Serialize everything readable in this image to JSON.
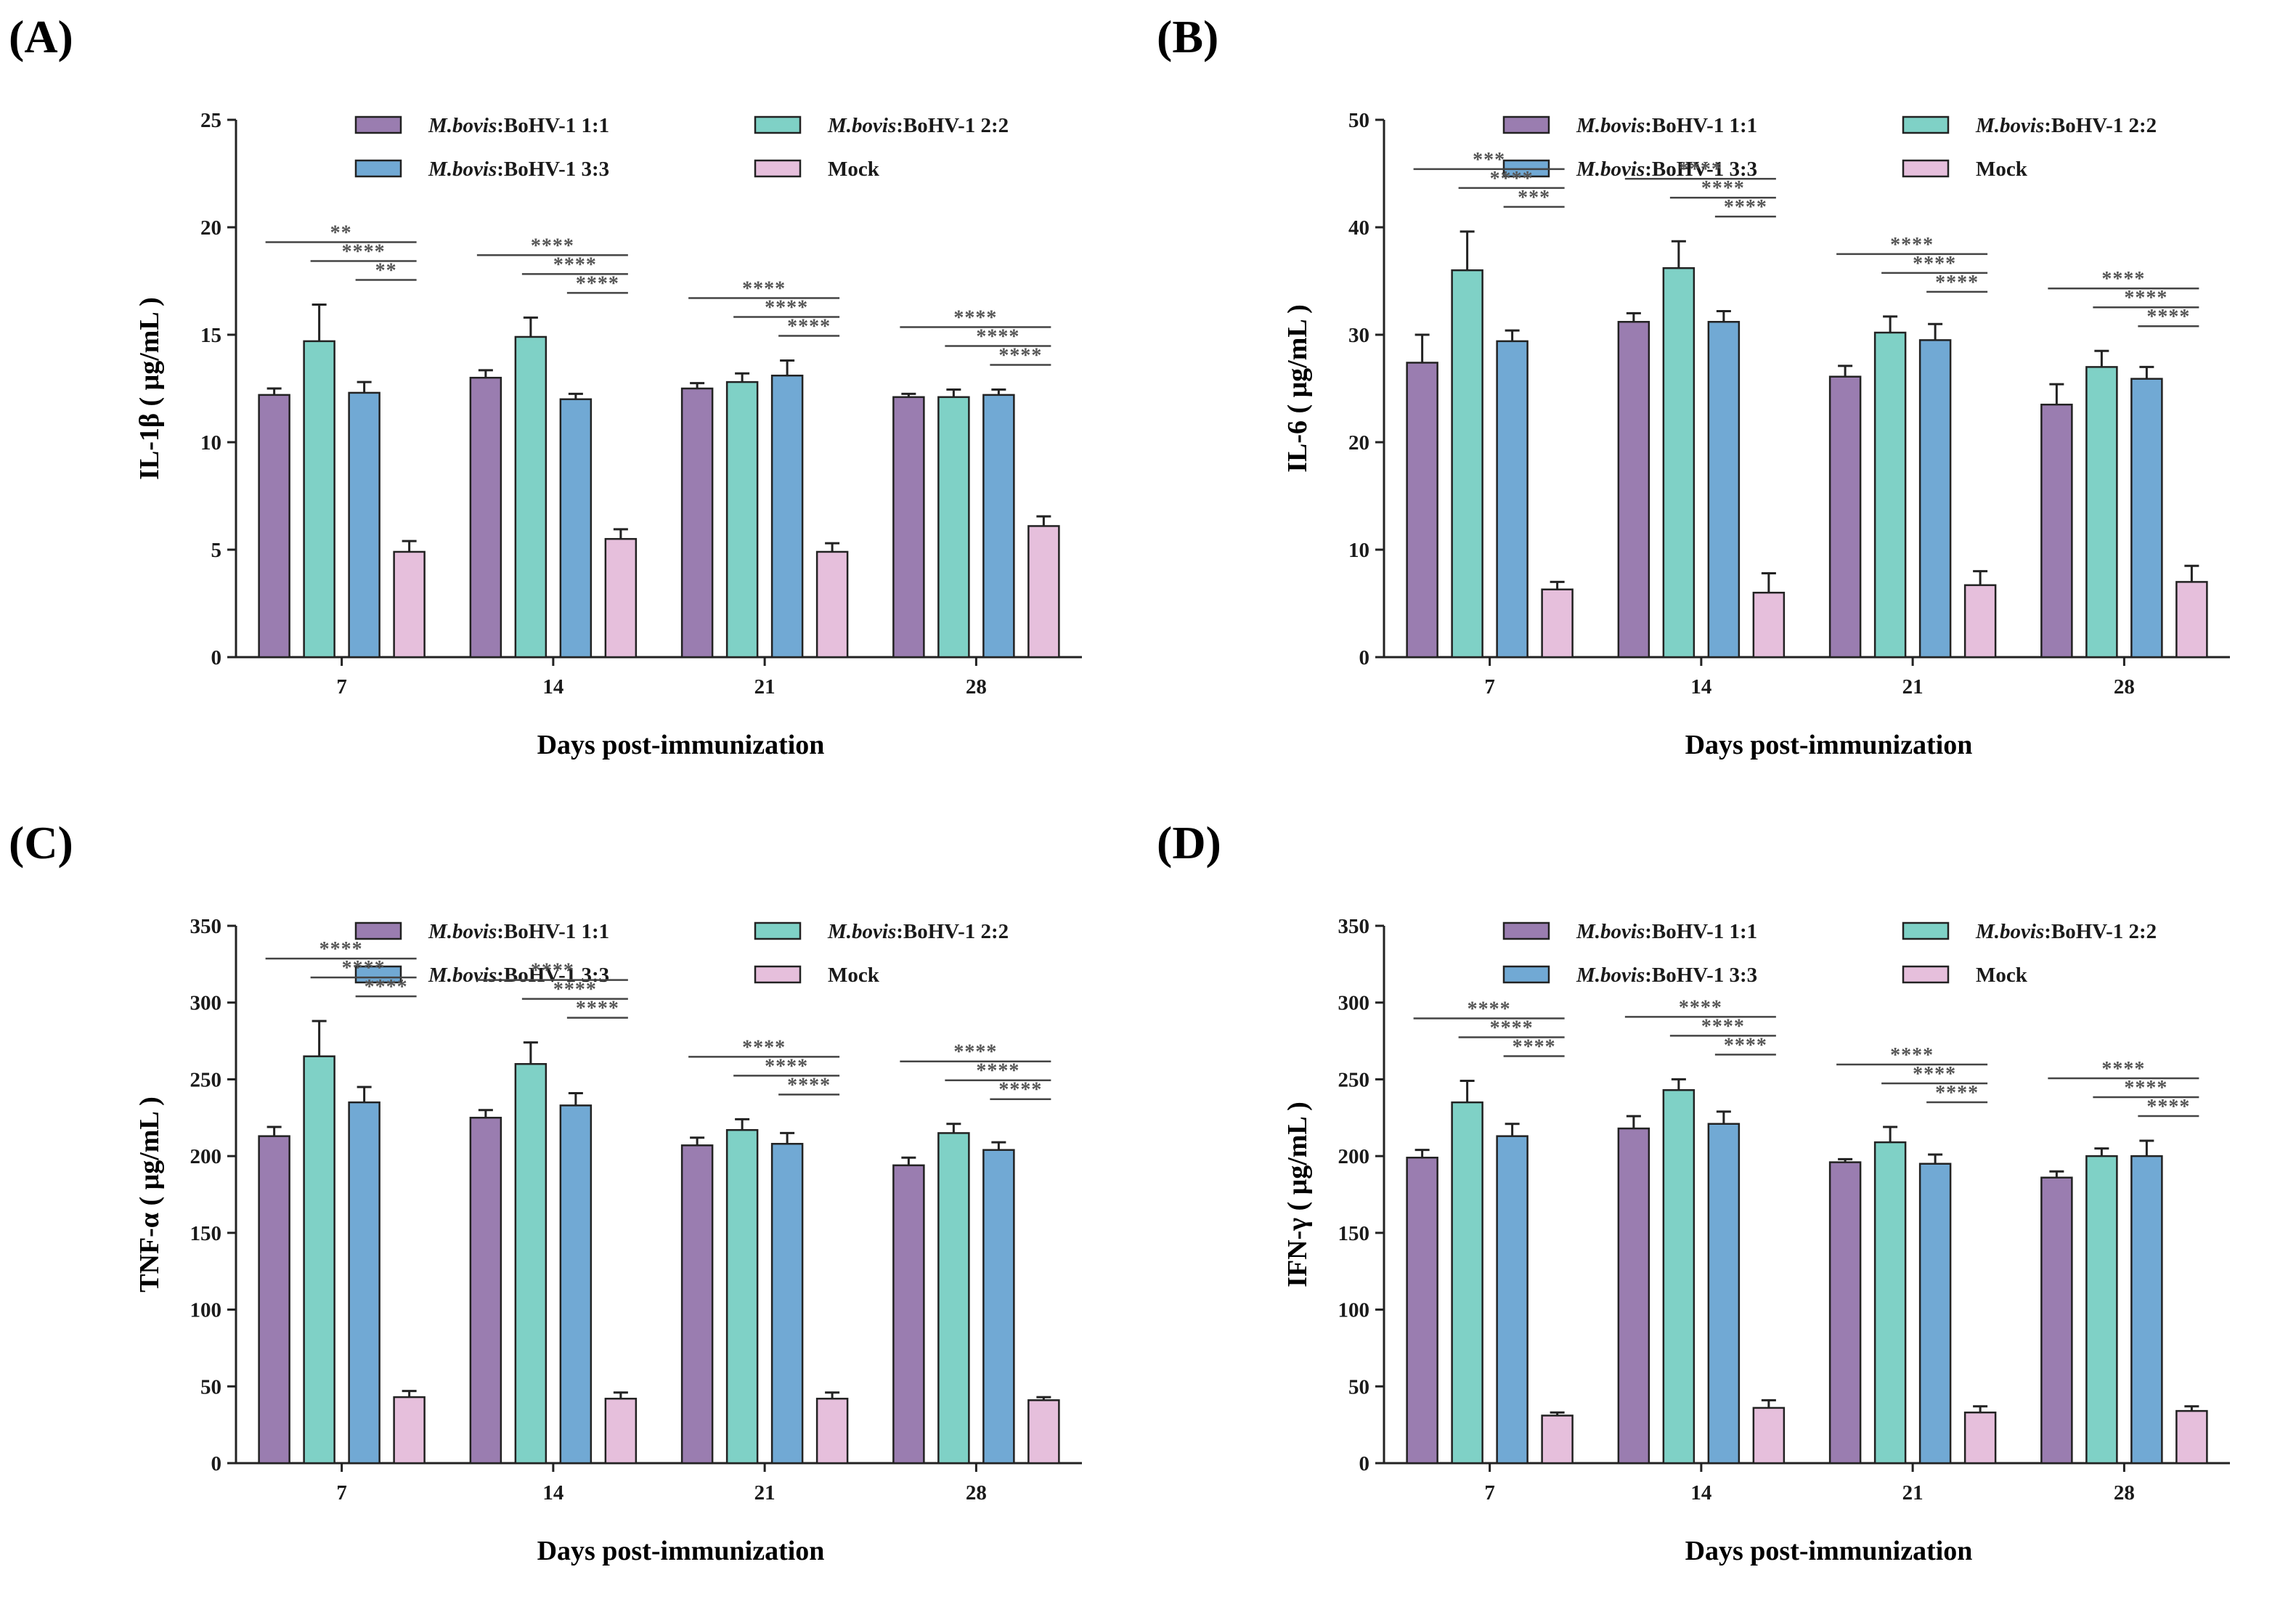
{
  "figure": {
    "legend": [
      {
        "italic": "M.bovis",
        "rest": ":BoHV-1 1:1",
        "color": "#9a7db0"
      },
      {
        "italic": "M.bovis",
        "rest": ":BoHV-1 2:2",
        "color": "#7fd1c6"
      },
      {
        "italic": "M.bovis",
        "rest": ":BoHV-1 3:3",
        "color": "#71a9d4"
      },
      {
        "italic": "",
        "rest": "Mock",
        "color": "#e6bfdc"
      }
    ]
  },
  "chart_data": [
    {
      "panel": "(A)",
      "type": "bar",
      "ylabel": "IL-1β ( μg/mL )",
      "xlabel": "Days post-immunization",
      "categories": [
        "7",
        "14",
        "21",
        "28"
      ],
      "ylim": [
        0,
        25
      ],
      "yticks": [
        "0",
        "5",
        "10",
        "15",
        "20",
        "25"
      ],
      "series": [
        {
          "name": "M.bovis:BoHV-1 1:1",
          "values": [
            12.2,
            13.0,
            12.5,
            12.1
          ],
          "errors": [
            0.3,
            0.35,
            0.25,
            0.15
          ]
        },
        {
          "name": "M.bovis:BoHV-1 2:2",
          "values": [
            14.7,
            14.9,
            12.8,
            12.1
          ],
          "errors": [
            1.7,
            0.9,
            0.4,
            0.35
          ]
        },
        {
          "name": "M.bovis:BoHV-1 3:3",
          "values": [
            12.3,
            12.0,
            13.1,
            12.2
          ],
          "errors": [
            0.5,
            0.25,
            0.7,
            0.25
          ]
        },
        {
          "name": "Mock",
          "values": [
            4.9,
            5.5,
            4.9,
            6.1
          ],
          "errors": [
            0.5,
            0.45,
            0.4,
            0.45
          ]
        }
      ],
      "significance": [
        [
          "**",
          "****",
          "**"
        ],
        [
          "****",
          "****",
          "****"
        ],
        [
          "****",
          "****",
          "****"
        ],
        [
          "****",
          "****",
          "****"
        ]
      ]
    },
    {
      "panel": "(B)",
      "type": "bar",
      "ylabel": "IL-6 ( μg/mL )",
      "xlabel": "Days post-immunization",
      "categories": [
        "7",
        "14",
        "21",
        "28"
      ],
      "ylim": [
        0,
        50
      ],
      "yticks": [
        "0",
        "10",
        "20",
        "30",
        "40",
        "50"
      ],
      "series": [
        {
          "name": "M.bovis:BoHV-1 1:1",
          "values": [
            27.4,
            31.2,
            26.1,
            23.5
          ],
          "errors": [
            2.6,
            0.8,
            1.0,
            1.9
          ]
        },
        {
          "name": "M.bovis:BoHV-1 2:2",
          "values": [
            36.0,
            36.2,
            30.2,
            27.0
          ],
          "errors": [
            3.6,
            2.5,
            1.5,
            1.5
          ]
        },
        {
          "name": "M.bovis:BoHV-1 3:3",
          "values": [
            29.4,
            31.2,
            29.5,
            25.9
          ],
          "errors": [
            1.0,
            1.0,
            1.5,
            1.1
          ]
        },
        {
          "name": "Mock",
          "values": [
            6.3,
            6.0,
            6.7,
            7.0
          ],
          "errors": [
            0.7,
            1.8,
            1.3,
            1.5
          ]
        }
      ],
      "significance": [
        [
          "***",
          "****",
          "***"
        ],
        [
          "****",
          "****",
          "****"
        ],
        [
          "****",
          "****",
          "****"
        ],
        [
          "****",
          "****",
          "****"
        ]
      ]
    },
    {
      "panel": "(C)",
      "type": "bar",
      "ylabel": "TNF-α ( μg/mL )",
      "xlabel": "Days post-immunization",
      "categories": [
        "7",
        "14",
        "21",
        "28"
      ],
      "ylim": [
        0,
        350
      ],
      "yticks": [
        "0",
        "50",
        "100",
        "150",
        "200",
        "250",
        "300",
        "350"
      ],
      "series": [
        {
          "name": "M.bovis:BoHV-1 1:1",
          "values": [
            213,
            225,
            207,
            194
          ],
          "errors": [
            6,
            5,
            5,
            5
          ]
        },
        {
          "name": "M.bovis:BoHV-1 2:2",
          "values": [
            265,
            260,
            217,
            215
          ],
          "errors": [
            23,
            14,
            7,
            6
          ]
        },
        {
          "name": "M.bovis:BoHV-1 3:3",
          "values": [
            235,
            233,
            208,
            204
          ],
          "errors": [
            10,
            8,
            7,
            5
          ]
        },
        {
          "name": "Mock",
          "values": [
            43,
            42,
            42,
            41
          ],
          "errors": [
            4,
            4,
            4,
            2
          ]
        }
      ],
      "significance": [
        [
          "****",
          "****",
          "****"
        ],
        [
          "****",
          "****",
          "****"
        ],
        [
          "****",
          "****",
          "****"
        ],
        [
          "****",
          "****",
          "****"
        ]
      ]
    },
    {
      "panel": "(D)",
      "type": "bar",
      "ylabel": "IFN-γ ( μg/mL )",
      "xlabel": "Days post-immunization",
      "categories": [
        "7",
        "14",
        "21",
        "28"
      ],
      "ylim": [
        0,
        350
      ],
      "yticks": [
        "0",
        "50",
        "100",
        "150",
        "200",
        "250",
        "300",
        "350"
      ],
      "series": [
        {
          "name": "M.bovis:BoHV-1 1:1",
          "values": [
            199,
            218,
            196,
            186
          ],
          "errors": [
            5,
            8,
            2,
            4
          ]
        },
        {
          "name": "M.bovis:BoHV-1 2:2",
          "values": [
            235,
            243,
            209,
            200
          ],
          "errors": [
            14,
            7,
            10,
            5
          ]
        },
        {
          "name": "M.bovis:BoHV-1 3:3",
          "values": [
            213,
            221,
            195,
            200
          ],
          "errors": [
            8,
            8,
            6,
            10
          ]
        },
        {
          "name": "Mock",
          "values": [
            31,
            36,
            33,
            34
          ],
          "errors": [
            2,
            5,
            4,
            3
          ]
        }
      ],
      "significance": [
        [
          "****",
          "****",
          "****"
        ],
        [
          "****",
          "****",
          "****"
        ],
        [
          "****",
          "****",
          "****"
        ],
        [
          "****",
          "****",
          "****"
        ]
      ]
    }
  ]
}
